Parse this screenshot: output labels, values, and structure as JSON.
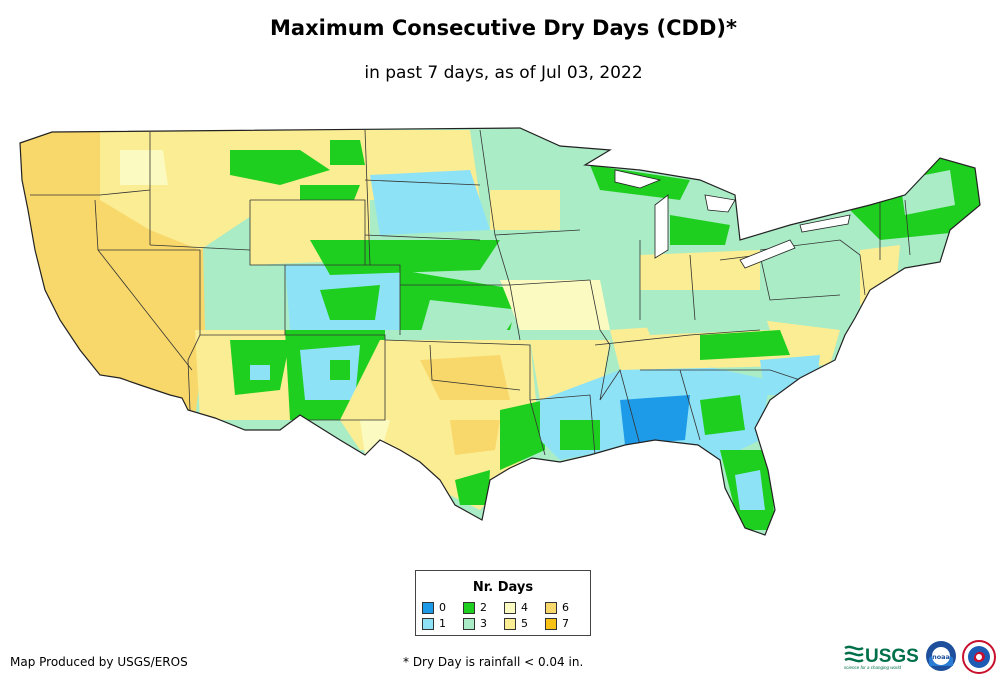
{
  "title": "Maximum Consecutive Dry Days (CDD)*",
  "subtitle": "in past 7 days, as of Jul 03, 2022",
  "legend": {
    "title": "Nr. Days",
    "items": [
      {
        "label": "0",
        "color": "#1e9be8"
      },
      {
        "label": "1",
        "color": "#8ee2f6"
      },
      {
        "label": "2",
        "color": "#1fcf1f"
      },
      {
        "label": "3",
        "color": "#a9ecc6"
      },
      {
        "label": "4",
        "color": "#fbfbc1"
      },
      {
        "label": "5",
        "color": "#fbed94"
      },
      {
        "label": "6",
        "color": "#f8d86b"
      },
      {
        "label": "7",
        "color": "#f7c116"
      }
    ]
  },
  "footer": {
    "credit": "Map Produced by USGS/EROS",
    "note": "* Dry Day is rainfall < 0.04 in."
  },
  "logos": {
    "usgs_text": "USGS",
    "usgs_tagline": "science for a changing world",
    "noaa_text": "noaa"
  }
}
